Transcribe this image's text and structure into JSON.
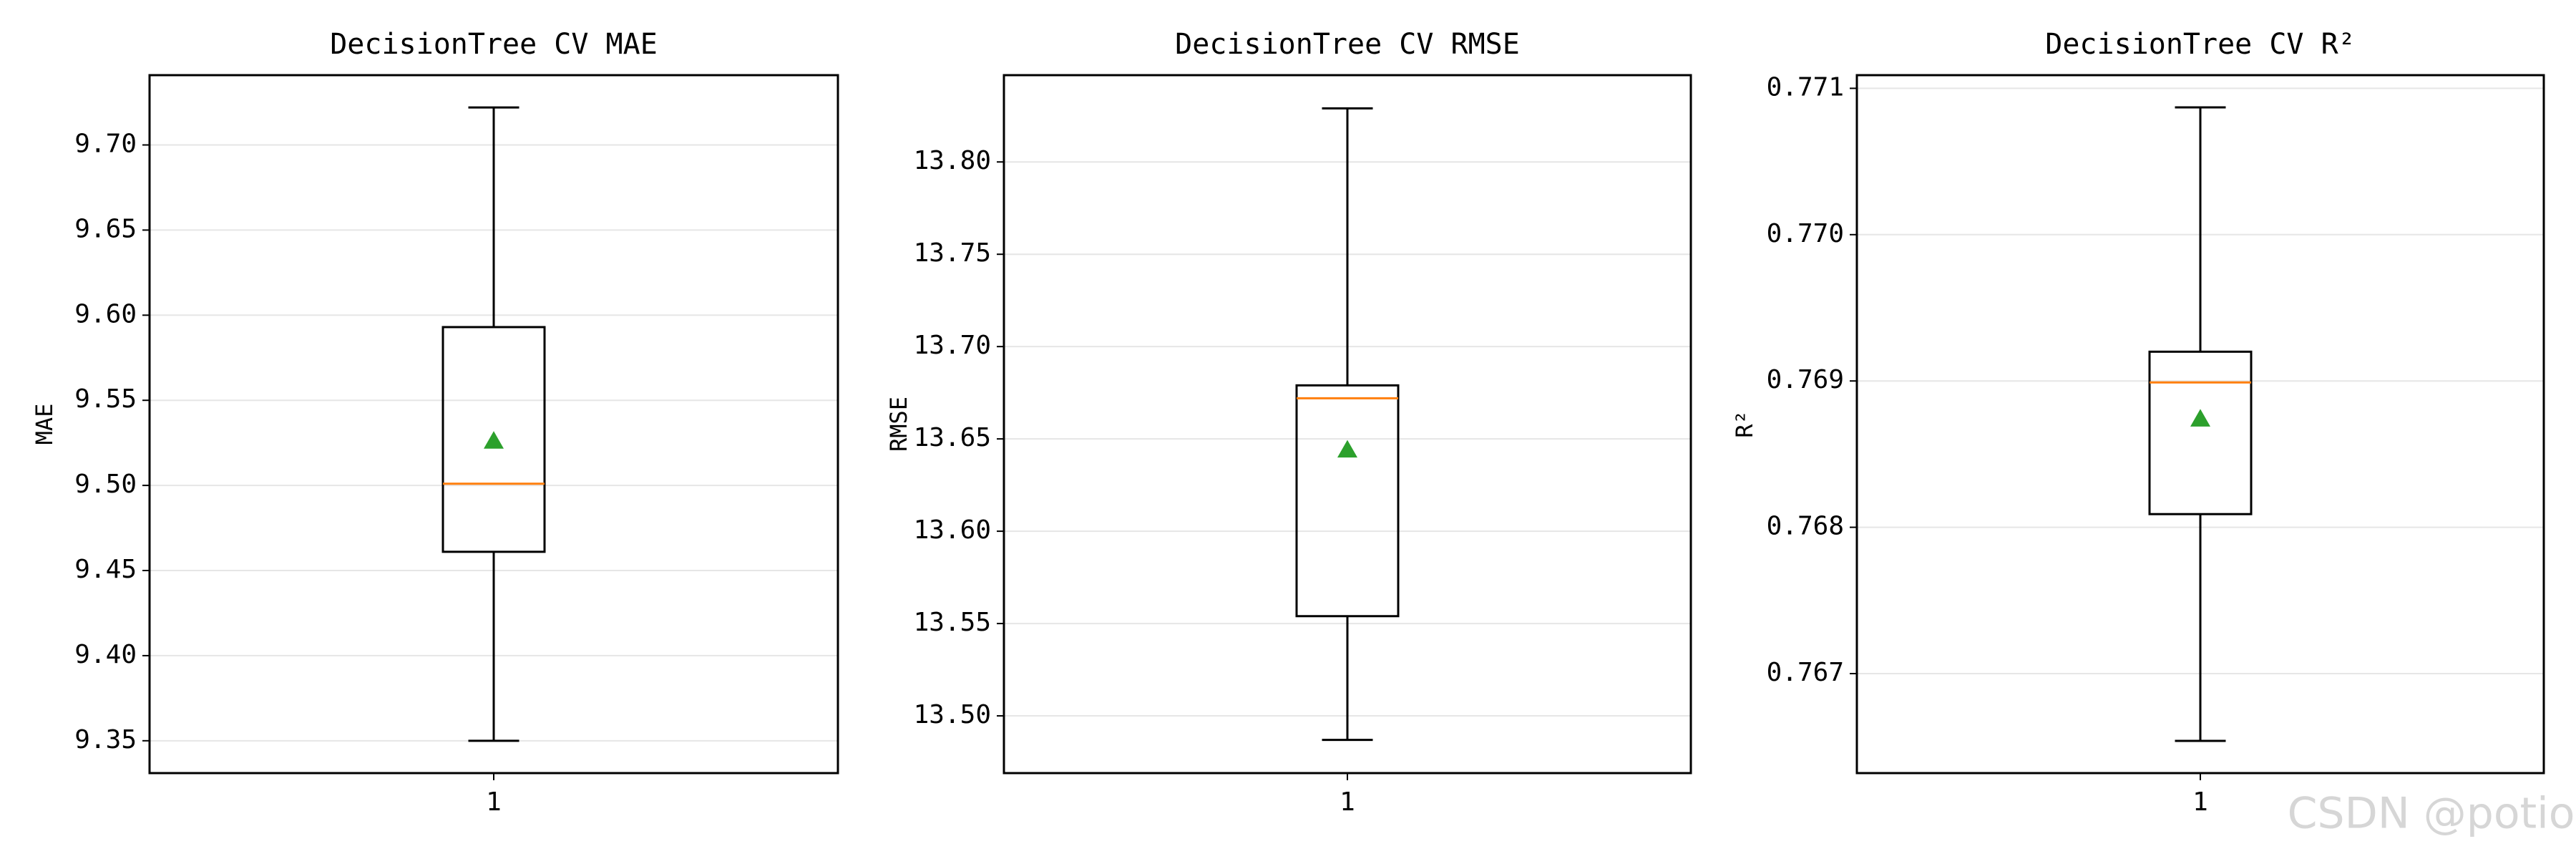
{
  "chart_data": [
    {
      "type": "box",
      "title": "DecisionTree CV MAE",
      "ylabel": "MAE",
      "categories": [
        "1"
      ],
      "whisker_low": 9.35,
      "q1": 9.461,
      "median": 9.501,
      "q3": 9.593,
      "whisker_high": 9.722,
      "mean": 9.526,
      "median_color": "#ff7f0e",
      "mean_color": "#2ca02c",
      "grid": true,
      "ylim": [
        9.331,
        9.741
      ],
      "yticks": [
        9.35,
        {
          "value": 9.4,
          "label": "9.40"
        },
        9.45,
        {
          "value": 9.5,
          "label": "9.50"
        },
        9.55,
        {
          "value": 9.6,
          "label": "9.60"
        },
        9.65,
        {
          "value": 9.7,
          "label": "9.70"
        }
      ]
    },
    {
      "type": "box",
      "title": "DecisionTree CV RMSE",
      "ylabel": "RMSE",
      "categories": [
        "1"
      ],
      "whisker_low": 13.487,
      "q1": 13.554,
      "median": 13.672,
      "q3": 13.679,
      "whisker_high": 13.829,
      "mean": 13.644,
      "median_color": "#ff7f0e",
      "mean_color": "#2ca02c",
      "grid": true,
      "ylim": [
        13.469,
        13.847
      ],
      "yticks": [
        {
          "value": 13.5,
          "label": "13.50"
        },
        13.55,
        {
          "value": 13.6,
          "label": "13.60"
        },
        13.65,
        {
          "value": 13.7,
          "label": "13.70"
        },
        13.75,
        {
          "value": 13.8,
          "label": "13.80"
        }
      ]
    },
    {
      "type": "box",
      "title": "DecisionTree CV R²",
      "ylabel": "R²",
      "categories": [
        "1"
      ],
      "whisker_low": 0.76654,
      "q1": 0.76809,
      "median": 0.76899,
      "q3": 0.7692,
      "whisker_high": 0.77087,
      "mean": 0.76874,
      "median_color": "#ff7f0e",
      "mean_color": "#2ca02c",
      "grid": true,
      "ylim": [
        0.76632,
        0.77109
      ],
      "yticks": [
        0.767,
        0.768,
        0.769,
        {
          "value": 0.77,
          "label": "0.770"
        },
        0.771
      ]
    }
  ],
  "watermark": "CSDN @potion()"
}
